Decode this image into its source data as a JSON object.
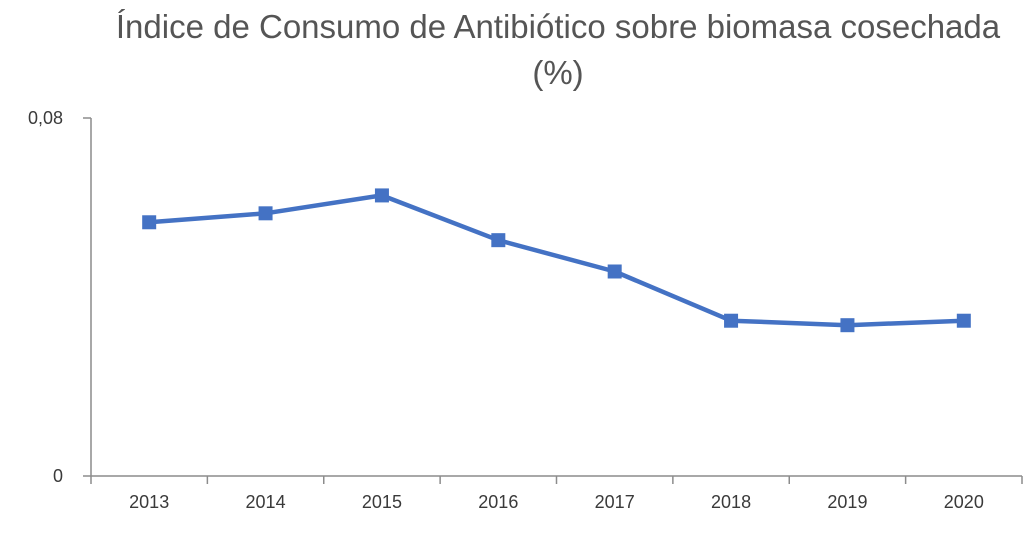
{
  "chart_data": {
    "type": "line",
    "title": "Índice de Consumo de Antibiótico sobre biomasa cosechada",
    "title_unit": "(%)",
    "xlabel": "",
    "ylabel": "",
    "categories": [
      "2013",
      "2014",
      "2015",
      "2016",
      "2017",
      "2018",
      "2019",
      "2020"
    ],
    "series": [
      {
        "values": [
          0.0567,
          0.0587,
          0.0627,
          0.0527,
          0.0457,
          0.0347,
          0.0337,
          0.0347
        ]
      }
    ],
    "ylim": [
      0,
      0.08
    ],
    "y_tick_labels": [
      "0",
      "0,08"
    ],
    "y_tick_values": [
      0,
      0.08
    ],
    "grid": false,
    "legend": "none",
    "colors": {
      "series": "#4472c4",
      "axis": "#8c8c8c",
      "title": "#555555",
      "ticks": "#3a3a3a"
    }
  }
}
